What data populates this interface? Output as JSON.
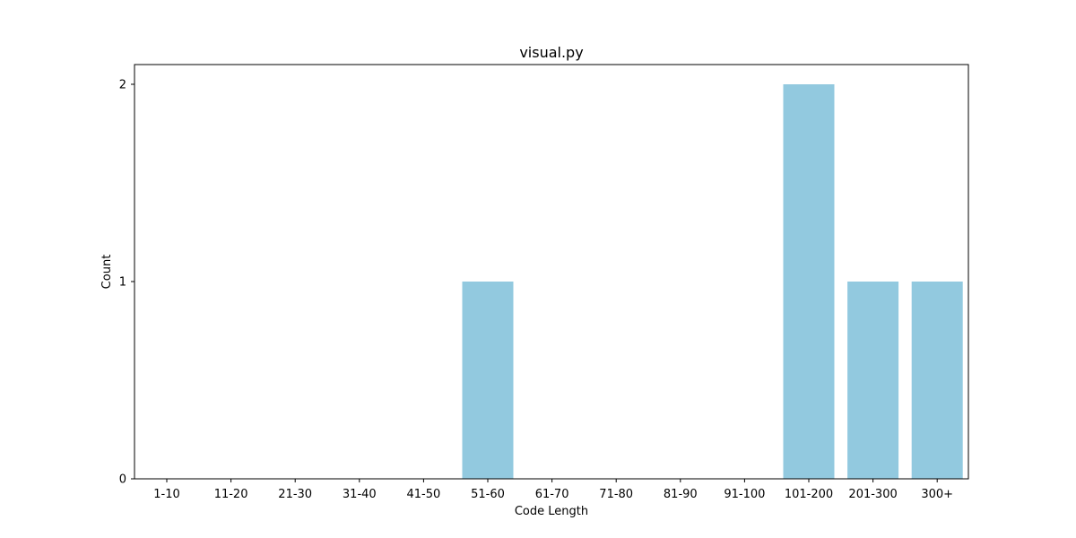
{
  "chart_data": {
    "type": "bar",
    "title": "visual.py",
    "xlabel": "Code Length",
    "ylabel": "Count",
    "categories": [
      "1-10",
      "11-20",
      "21-30",
      "31-40",
      "41-50",
      "51-60",
      "61-70",
      "71-80",
      "81-90",
      "91-100",
      "101-200",
      "201-300",
      "300+"
    ],
    "values": [
      0,
      0,
      0,
      0,
      0,
      1,
      0,
      0,
      0,
      0,
      2,
      1,
      1
    ],
    "yticks": [
      0,
      1,
      2
    ],
    "ylim": [
      0,
      2.1
    ],
    "grid": false,
    "legend": false,
    "bar_color": "#92c9df"
  }
}
